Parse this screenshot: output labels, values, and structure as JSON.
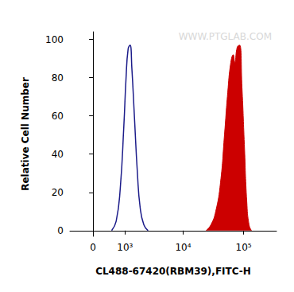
{
  "chart_data": {
    "type": "line",
    "xlabel": "CL488-67420(RBM39),FITC-H",
    "ylabel": "Relative Cell Number",
    "annotations": [
      "WWW.PTGLAB.COM"
    ],
    "xlim": [
      -650,
      350000
    ],
    "xticks": [
      0,
      {
        "value": 1000,
        "label": "10³"
      },
      {
        "value": 10000,
        "label": "10⁴"
      },
      {
        "value": 100000,
        "label": "10⁵"
      }
    ],
    "ylim": [
      -3,
      104
    ],
    "yticks": [
      0,
      20,
      40,
      60,
      80,
      100
    ],
    "grid": false,
    "series": [
      {
        "type": "line",
        "color": "#1c1c8a",
        "x": [
          500,
          650,
          800,
          950,
          1050,
          1150,
          1250,
          1350,
          1500,
          1700,
          1900,
          2200,
          2600
        ],
        "values": [
          0,
          5,
          22,
          55,
          80,
          95,
          97,
          85,
          60,
          30,
          12,
          3,
          0
        ]
      },
      {
        "type": "area",
        "color": "#cc0000",
        "x": [
          24000,
          28800,
          34600,
          41500,
          48300,
          54600,
          61500,
          67500,
          71700,
          78500,
          86000,
          94000,
          103000,
          113000,
          123000,
          135000
        ],
        "values": [
          0,
          3,
          10,
          25,
          50,
          72,
          88,
          92,
          88,
          96,
          97,
          75,
          45,
          15,
          3,
          0
        ]
      }
    ]
  }
}
